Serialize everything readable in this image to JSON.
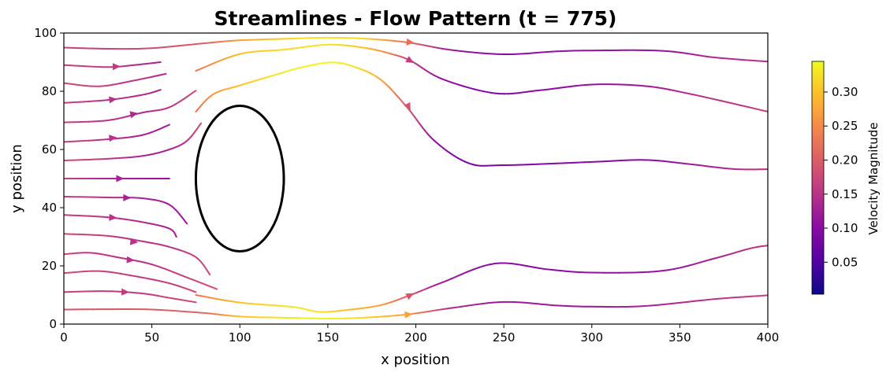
{
  "chart_data": {
    "type": "streamline",
    "title": "Streamlines - Flow Pattern (t = 775)",
    "xlabel": "x position",
    "ylabel": "y position",
    "xlim": [
      0,
      400
    ],
    "ylim": [
      0,
      100
    ],
    "xticks": [
      "0",
      "50",
      "100",
      "150",
      "200",
      "250",
      "300",
      "350",
      "400"
    ],
    "yticks": [
      "0",
      "20",
      "40",
      "60",
      "80",
      "100"
    ],
    "colormap": "plasma",
    "colorbar": {
      "label": "Velocity Magnitude",
      "ticks": [
        "0.05",
        "0.10",
        "0.15",
        "0.20",
        "0.25",
        "0.30"
      ],
      "range": [
        0.003,
        0.345
      ]
    },
    "obstacle": {
      "shape": "ellipse",
      "center": [
        100,
        50
      ],
      "radius_x": 25,
      "radius_y": 25,
      "color": "#000000"
    },
    "streamlines": [
      {
        "points": [
          [
            0,
            95
          ],
          [
            25,
            94.6
          ],
          [
            50,
            94.8
          ],
          [
            80,
            96.5
          ],
          [
            100,
            97.5
          ],
          [
            130,
            98.1
          ],
          [
            150,
            98.4
          ],
          [
            170,
            98.1
          ],
          [
            195,
            96.8
          ],
          [
            220,
            94.2
          ],
          [
            250,
            92.7
          ],
          [
            280,
            93.7
          ],
          [
            300,
            94
          ],
          [
            340,
            93.9
          ],
          [
            370,
            91.6
          ],
          [
            400,
            90.2
          ]
        ],
        "speed": [
          0.17,
          0.17,
          0.18,
          0.2,
          0.27,
          0.32,
          0.33,
          0.32,
          0.22,
          0.12,
          0.1,
          0.11,
          0.11,
          0.11,
          0.14,
          0.15
        ]
      },
      {
        "points": [
          [
            0,
            89
          ],
          [
            25,
            88.3
          ],
          [
            40,
            89
          ],
          [
            55,
            90
          ]
        ],
        "speed": [
          0.17,
          0.16,
          0.14,
          0.13
        ]
      },
      {
        "points": [
          [
            75,
            87
          ],
          [
            100,
            92.8
          ],
          [
            125,
            94.3
          ],
          [
            150,
            96
          ],
          [
            170,
            95
          ],
          [
            185,
            93
          ],
          [
            197,
            90.5
          ],
          [
            215,
            84.2
          ],
          [
            245,
            79.3
          ],
          [
            270,
            80.3
          ],
          [
            300,
            82.3
          ],
          [
            330,
            81.8
          ],
          [
            355,
            79.2
          ],
          [
            400,
            73
          ]
        ],
        "speed": [
          0.22,
          0.3,
          0.32,
          0.33,
          0.3,
          0.24,
          0.16,
          0.11,
          0.09,
          0.1,
          0.11,
          0.12,
          0.14,
          0.17
        ]
      },
      {
        "points": [
          [
            0,
            82.8
          ],
          [
            20,
            81.7
          ],
          [
            40,
            83.7
          ],
          [
            58,
            86
          ]
        ],
        "speed": [
          0.18,
          0.17,
          0.15,
          0.14
        ]
      },
      {
        "points": [
          [
            0,
            76
          ],
          [
            25,
            77
          ],
          [
            45,
            78.8
          ],
          [
            55,
            80.5
          ]
        ],
        "speed": [
          0.17,
          0.15,
          0.14,
          0.13
        ]
      },
      {
        "points": [
          [
            0,
            69.3
          ],
          [
            25,
            70
          ],
          [
            45,
            72.7
          ],
          [
            60,
            74.5
          ],
          [
            75,
            80.2
          ]
        ],
        "speed": [
          0.17,
          0.15,
          0.14,
          0.15,
          0.18
        ]
      },
      {
        "points": [
          [
            75,
            73
          ],
          [
            85,
            79
          ],
          [
            100,
            82
          ],
          [
            120,
            85.6
          ],
          [
            135,
            88.2
          ],
          [
            152,
            89.9
          ],
          [
            165,
            88.4
          ],
          [
            180,
            84
          ],
          [
            195,
            74.5
          ],
          [
            210,
            63.3
          ],
          [
            230,
            55.3
          ],
          [
            250,
            54.6
          ],
          [
            300,
            55.7
          ],
          [
            330,
            56.4
          ],
          [
            355,
            55
          ],
          [
            380,
            53.3
          ],
          [
            400,
            53.2
          ]
        ],
        "speed": [
          0.22,
          0.26,
          0.3,
          0.33,
          0.34,
          0.34,
          0.33,
          0.28,
          0.19,
          0.11,
          0.08,
          0.09,
          0.1,
          0.1,
          0.12,
          0.14,
          0.15
        ]
      },
      {
        "points": [
          [
            0,
            62.6
          ],
          [
            25,
            63.5
          ],
          [
            45,
            65
          ],
          [
            60,
            68.5
          ]
        ],
        "speed": [
          0.17,
          0.15,
          0.13,
          0.13
        ]
      },
      {
        "points": [
          [
            0,
            56.2
          ],
          [
            25,
            56.8
          ],
          [
            45,
            57.8
          ],
          [
            60,
            60
          ],
          [
            70,
            63
          ],
          [
            78,
            69
          ]
        ],
        "speed": [
          0.18,
          0.16,
          0.13,
          0.13,
          0.15,
          0.18
        ]
      },
      {
        "points": [
          [
            0,
            50
          ],
          [
            30,
            50
          ],
          [
            60,
            50
          ]
        ],
        "speed": [
          0.17,
          0.13,
          0.11
        ]
      },
      {
        "points": [
          [
            0,
            43.8
          ],
          [
            25,
            43.5
          ],
          [
            45,
            43.2
          ],
          [
            60,
            41
          ],
          [
            70,
            34.5
          ]
        ],
        "speed": [
          0.17,
          0.15,
          0.13,
          0.12,
          0.12
        ]
      },
      {
        "points": [
          [
            0,
            37.5
          ],
          [
            25,
            36.7
          ],
          [
            45,
            35
          ],
          [
            60,
            32.8
          ],
          [
            64,
            30
          ]
        ],
        "speed": [
          0.17,
          0.15,
          0.14,
          0.13,
          0.13
        ]
      },
      {
        "points": [
          [
            0,
            31
          ],
          [
            25,
            30.3
          ],
          [
            45,
            28.4
          ],
          [
            60,
            26.5
          ],
          [
            75,
            23
          ],
          [
            83,
            17
          ]
        ],
        "speed": [
          0.18,
          0.16,
          0.15,
          0.15,
          0.17,
          0.18
        ]
      },
      {
        "points": [
          [
            0,
            24
          ],
          [
            15,
            24.5
          ],
          [
            30,
            23
          ],
          [
            50,
            20.5
          ],
          [
            70,
            16
          ],
          [
            87,
            12
          ]
        ],
        "speed": [
          0.18,
          0.16,
          0.15,
          0.15,
          0.17,
          0.19
        ]
      },
      {
        "points": [
          [
            0,
            17.5
          ],
          [
            20,
            18.2
          ],
          [
            40,
            16.5
          ],
          [
            60,
            14
          ],
          [
            75,
            11
          ]
        ],
        "speed": [
          0.18,
          0.17,
          0.16,
          0.16,
          0.18
        ]
      },
      {
        "points": [
          [
            0,
            11
          ],
          [
            25,
            11.3
          ],
          [
            45,
            10.5
          ],
          [
            60,
            9
          ],
          [
            75,
            7.5
          ]
        ],
        "speed": [
          0.17,
          0.16,
          0.16,
          0.17,
          0.18
        ]
      },
      {
        "points": [
          [
            75,
            10
          ],
          [
            100,
            7.4
          ],
          [
            130,
            5.9
          ],
          [
            145,
            4.2
          ],
          [
            160,
            4.8
          ],
          [
            180,
            6.5
          ],
          [
            197,
            10
          ],
          [
            215,
            14.3
          ],
          [
            245,
            20.8
          ],
          [
            275,
            18.8
          ],
          [
            300,
            17.7
          ],
          [
            340,
            18.3
          ],
          [
            370,
            22.6
          ],
          [
            390,
            26
          ],
          [
            400,
            27
          ]
        ],
        "speed": [
          0.22,
          0.3,
          0.33,
          0.33,
          0.3,
          0.27,
          0.19,
          0.12,
          0.1,
          0.1,
          0.11,
          0.11,
          0.13,
          0.15,
          0.16
        ]
      },
      {
        "points": [
          [
            0,
            5
          ],
          [
            25,
            5.1
          ],
          [
            50,
            5
          ],
          [
            80,
            3.8
          ],
          [
            100,
            2.6
          ],
          [
            125,
            2.2
          ],
          [
            150,
            1.9
          ],
          [
            170,
            2.2
          ],
          [
            195,
            3.3
          ],
          [
            220,
            5.5
          ],
          [
            250,
            7.6
          ],
          [
            280,
            6.4
          ],
          [
            300,
            6
          ],
          [
            330,
            6.2
          ],
          [
            370,
            8.6
          ],
          [
            400,
            9.9
          ]
        ],
        "speed": [
          0.19,
          0.19,
          0.2,
          0.21,
          0.3,
          0.33,
          0.34,
          0.32,
          0.27,
          0.14,
          0.12,
          0.12,
          0.12,
          0.13,
          0.15,
          0.17
        ]
      }
    ],
    "arrows": [
      {
        "at": [
          197,
          96.8
        ],
        "dir": [
          1,
          -0.1
        ]
      },
      {
        "at": [
          30,
          88.5
        ],
        "dir": [
          1,
          0.03
        ]
      },
      {
        "at": [
          197,
          90.4
        ],
        "dir": [
          0.9,
          -0.5
        ]
      },
      {
        "at": [
          28,
          77.2
        ],
        "dir": [
          1,
          0.12
        ]
      },
      {
        "at": [
          40,
          72.2
        ],
        "dir": [
          1,
          0.2
        ]
      },
      {
        "at": [
          28,
          64
        ],
        "dir": [
          1,
          0.1
        ]
      },
      {
        "at": [
          196,
          74.5
        ],
        "dir": [
          0.5,
          -1
        ]
      },
      {
        "at": [
          32,
          50
        ],
        "dir": [
          1,
          0
        ]
      },
      {
        "at": [
          36,
          43.4
        ],
        "dir": [
          1,
          -0.02
        ]
      },
      {
        "at": [
          28,
          36.6
        ],
        "dir": [
          1,
          -0.05
        ]
      },
      {
        "at": [
          40,
          28.2
        ],
        "dir": [
          1,
          -0.1
        ]
      },
      {
        "at": [
          38,
          22
        ],
        "dir": [
          1,
          -0.08
        ]
      },
      {
        "at": [
          35,
          11
        ],
        "dir": [
          1,
          -0.03
        ]
      },
      {
        "at": [
          197,
          10
        ],
        "dir": [
          0.9,
          0.45
        ]
      },
      {
        "at": [
          196,
          3.3
        ],
        "dir": [
          1,
          0.08
        ]
      }
    ]
  }
}
